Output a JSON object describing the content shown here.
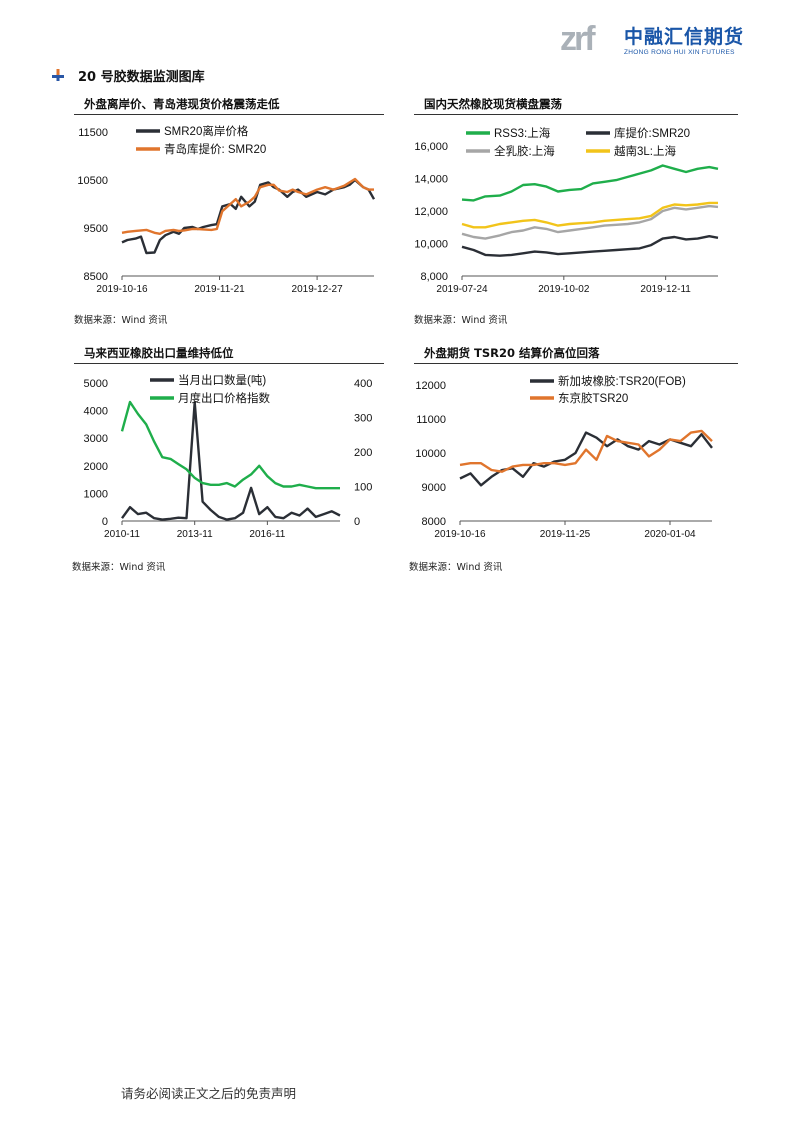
{
  "header": {
    "logo_mark": "zrf",
    "logo_cn": "中融汇信期货",
    "logo_en": "ZHONG RONG HUI XIN FUTURES"
  },
  "section": {
    "title": "20 号胶数据监测图库"
  },
  "footer": {
    "disclaimer": "请务必阅读正文之后的免责声明"
  },
  "colors": {
    "black_series": "#2b2f36",
    "orange_series": "#e0752d",
    "green_series": "#1fae4b",
    "gray_series": "#a6a6a6",
    "yellow_series": "#f2c41a"
  },
  "panels": [
    {
      "title": "外盘离岸价、青岛港现货价格震荡走低",
      "source": "数据来源：Wind 资讯"
    },
    {
      "title": "国内天然橡胶现货横盘震荡",
      "source": "数据来源：Wind 资讯"
    },
    {
      "title": "马来西亚橡胶出口量维持低位",
      "source": "数据来源：Wind 资讯"
    },
    {
      "title": "外盘期货 TSR20 结算价高位回落",
      "source": "数据来源：Wind 资讯"
    }
  ],
  "chart_data": [
    {
      "type": "line",
      "title": "外盘离岸价、青岛港现货价格震荡走低",
      "ylim": [
        8500,
        11500
      ],
      "y_ticks": [
        "11500",
        "10500",
        "9500",
        "8500"
      ],
      "x_ticks": [
        "2019-10-16",
        "2019-11-21",
        "2019-12-27"
      ],
      "x": [
        "2019-10-16",
        "2019-10-18",
        "2019-10-21",
        "2019-10-23",
        "2019-10-25",
        "2019-10-28",
        "2019-10-30",
        "2019-11-01",
        "2019-11-04",
        "2019-11-06",
        "2019-11-08",
        "2019-11-11",
        "2019-11-13",
        "2019-11-15",
        "2019-11-18",
        "2019-11-20",
        "2019-11-22",
        "2019-11-25",
        "2019-11-27",
        "2019-11-29",
        "2019-12-02",
        "2019-12-04",
        "2019-12-06",
        "2019-12-09",
        "2019-12-11",
        "2019-12-13",
        "2019-12-16",
        "2019-12-18",
        "2019-12-20",
        "2019-12-23",
        "2019-12-25",
        "2019-12-27",
        "2019-12-30",
        "2020-01-02",
        "2020-01-06",
        "2020-01-08",
        "2020-01-10",
        "2020-01-13",
        "2020-01-15",
        "2020-01-17"
      ],
      "series": [
        {
          "name": "SMR20离岸价格",
          "color": "#2b2f36",
          "values": [
            9200,
            9250,
            9280,
            9320,
            8980,
            8990,
            9250,
            9350,
            9420,
            9380,
            9500,
            9520,
            9480,
            9520,
            9560,
            9580,
            9950,
            10000,
            9900,
            10150,
            9950,
            10050,
            10400,
            10450,
            10350,
            10300,
            10150,
            10250,
            10300,
            10150,
            10200,
            10250,
            10200,
            10300,
            10350,
            10400,
            10500,
            10350,
            10300,
            10100
          ]
        },
        {
          "name": "青岛库提价: SMR20",
          "color": "#e0752d",
          "values": [
            9400,
            9420,
            9440,
            9450,
            9460,
            9400,
            9380,
            9440,
            9460,
            9440,
            9450,
            9480,
            9480,
            9470,
            9460,
            9480,
            9850,
            10000,
            10100,
            9950,
            10050,
            10150,
            10350,
            10400,
            10400,
            10280,
            10250,
            10300,
            10250,
            10200,
            10250,
            10300,
            10350,
            10300,
            10380,
            10450,
            10520,
            10350,
            10300,
            10300
          ]
        }
      ]
    },
    {
      "type": "line",
      "title": "国内天然橡胶现货横盘震荡",
      "ylim": [
        8000,
        16000
      ],
      "y_ticks": [
        "16,000",
        "14,000",
        "12,000",
        "10,000",
        "8,000"
      ],
      "x_ticks": [
        "2019-07-24",
        "2019-10-02",
        "2019-12-11"
      ],
      "x": [
        "2019-07-24",
        "2019-08-01",
        "2019-08-09",
        "2019-08-19",
        "2019-08-27",
        "2019-09-04",
        "2019-09-12",
        "2019-09-20",
        "2019-09-28",
        "2019-10-06",
        "2019-10-14",
        "2019-10-22",
        "2019-10-30",
        "2019-11-07",
        "2019-11-15",
        "2019-11-23",
        "2019-12-01",
        "2019-12-09",
        "2019-12-17",
        "2019-12-25",
        "2020-01-02",
        "2020-01-10",
        "2020-01-16"
      ],
      "series": [
        {
          "name": "RSS3:上海",
          "color": "#1fae4b",
          "values": [
            12700,
            12650,
            12900,
            12950,
            13200,
            13600,
            13650,
            13500,
            13200,
            13300,
            13350,
            13700,
            13800,
            13900,
            14100,
            14300,
            14500,
            14800,
            14600,
            14400,
            14600,
            14700,
            14600
          ]
        },
        {
          "name": "库提价:SMR20",
          "color": "#2b2f36",
          "values": [
            9800,
            9600,
            9300,
            9250,
            9300,
            9400,
            9500,
            9450,
            9350,
            9400,
            9450,
            9500,
            9550,
            9600,
            9650,
            9700,
            9900,
            10300,
            10400,
            10250,
            10300,
            10450,
            10350
          ]
        },
        {
          "name": "全乳胶:上海",
          "color": "#a6a6a6",
          "values": [
            10600,
            10400,
            10300,
            10500,
            10700,
            10800,
            11000,
            10900,
            10700,
            10800,
            10900,
            11000,
            11100,
            11150,
            11200,
            11300,
            11500,
            12000,
            12200,
            12100,
            12200,
            12300,
            12250
          ]
        },
        {
          "name": "越南3L:上海",
          "color": "#f2c41a",
          "values": [
            11200,
            11000,
            11000,
            11200,
            11300,
            11400,
            11450,
            11300,
            11100,
            11200,
            11250,
            11300,
            11400,
            11450,
            11500,
            11550,
            11700,
            12200,
            12400,
            12350,
            12400,
            12500,
            12500
          ]
        }
      ]
    },
    {
      "type": "line",
      "title": "马来西亚橡胶出口量维持低位",
      "ylim": [
        0,
        5000
      ],
      "y_ticks": [
        "5000",
        "4000",
        "3000",
        "2000",
        "1000",
        "0"
      ],
      "y2lim": [
        0,
        400
      ],
      "y2_ticks": [
        "400",
        "300",
        "200",
        "100",
        "0"
      ],
      "x_ticks": [
        "2010-11",
        "2013-11",
        "2016-11"
      ],
      "x": [
        "2010-11",
        "2011-03",
        "2011-07",
        "2011-11",
        "2012-03",
        "2012-07",
        "2012-11",
        "2013-03",
        "2013-07",
        "2013-11",
        "2014-03",
        "2014-07",
        "2014-11",
        "2015-03",
        "2015-07",
        "2015-11",
        "2016-03",
        "2016-07",
        "2016-11",
        "2017-03",
        "2017-07",
        "2017-11",
        "2018-03",
        "2018-07",
        "2018-11",
        "2019-03",
        "2019-07",
        "2019-11"
      ],
      "series": [
        {
          "name": "当月出口数量(吨)",
          "color": "#2b2f36",
          "axis": "left",
          "values": [
            100,
            500,
            250,
            300,
            100,
            50,
            80,
            120,
            100,
            4300,
            700,
            400,
            150,
            50,
            100,
            300,
            1200,
            250,
            500,
            150,
            100,
            300,
            200,
            450,
            150,
            250,
            350,
            200
          ]
        },
        {
          "name": "月度出口价格指数",
          "color": "#1fae4b",
          "axis": "right",
          "values": [
            260,
            345,
            310,
            280,
            230,
            185,
            180,
            165,
            150,
            125,
            110,
            105,
            105,
            110,
            100,
            120,
            135,
            160,
            130,
            110,
            100,
            100,
            105,
            100,
            95,
            95,
            95,
            95
          ]
        }
      ]
    },
    {
      "type": "line",
      "title": "外盘期货 TSR20 结算价高位回落",
      "ylim": [
        8000,
        12000
      ],
      "y_ticks": [
        "12000",
        "11000",
        "10000",
        "9000",
        "8000"
      ],
      "x_ticks": [
        "2019-10-16",
        "2019-11-25",
        "2020-01-04"
      ],
      "x": [
        "2019-10-16",
        "2019-10-20",
        "2019-10-24",
        "2019-10-28",
        "2019-11-01",
        "2019-11-05",
        "2019-11-09",
        "2019-11-13",
        "2019-11-17",
        "2019-11-21",
        "2019-11-25",
        "2019-11-29",
        "2019-12-03",
        "2019-12-07",
        "2019-12-11",
        "2019-12-15",
        "2019-12-19",
        "2019-12-23",
        "2019-12-27",
        "2019-12-31",
        "2020-01-04",
        "2020-01-08",
        "2020-01-12",
        "2020-01-16",
        "2020-01-20"
      ],
      "series": [
        {
          "name": "新加坡橡胶:TSR20(FOB)",
          "color": "#2b2f36",
          "values": [
            9250,
            9400,
            9050,
            9300,
            9500,
            9550,
            9300,
            9700,
            9600,
            9750,
            9800,
            10000,
            10600,
            10450,
            10200,
            10400,
            10200,
            10100,
            10350,
            10250,
            10400,
            10300,
            10200,
            10550,
            10150
          ]
        },
        {
          "name": "东京胶TSR20",
          "color": "#e0752d",
          "values": [
            9650,
            9700,
            9700,
            9500,
            9450,
            9600,
            9650,
            9650,
            9700,
            9700,
            9650,
            9700,
            10100,
            9800,
            10500,
            10350,
            10300,
            10250,
            9900,
            10100,
            10400,
            10350,
            10600,
            10650,
            10350
          ]
        }
      ]
    }
  ]
}
